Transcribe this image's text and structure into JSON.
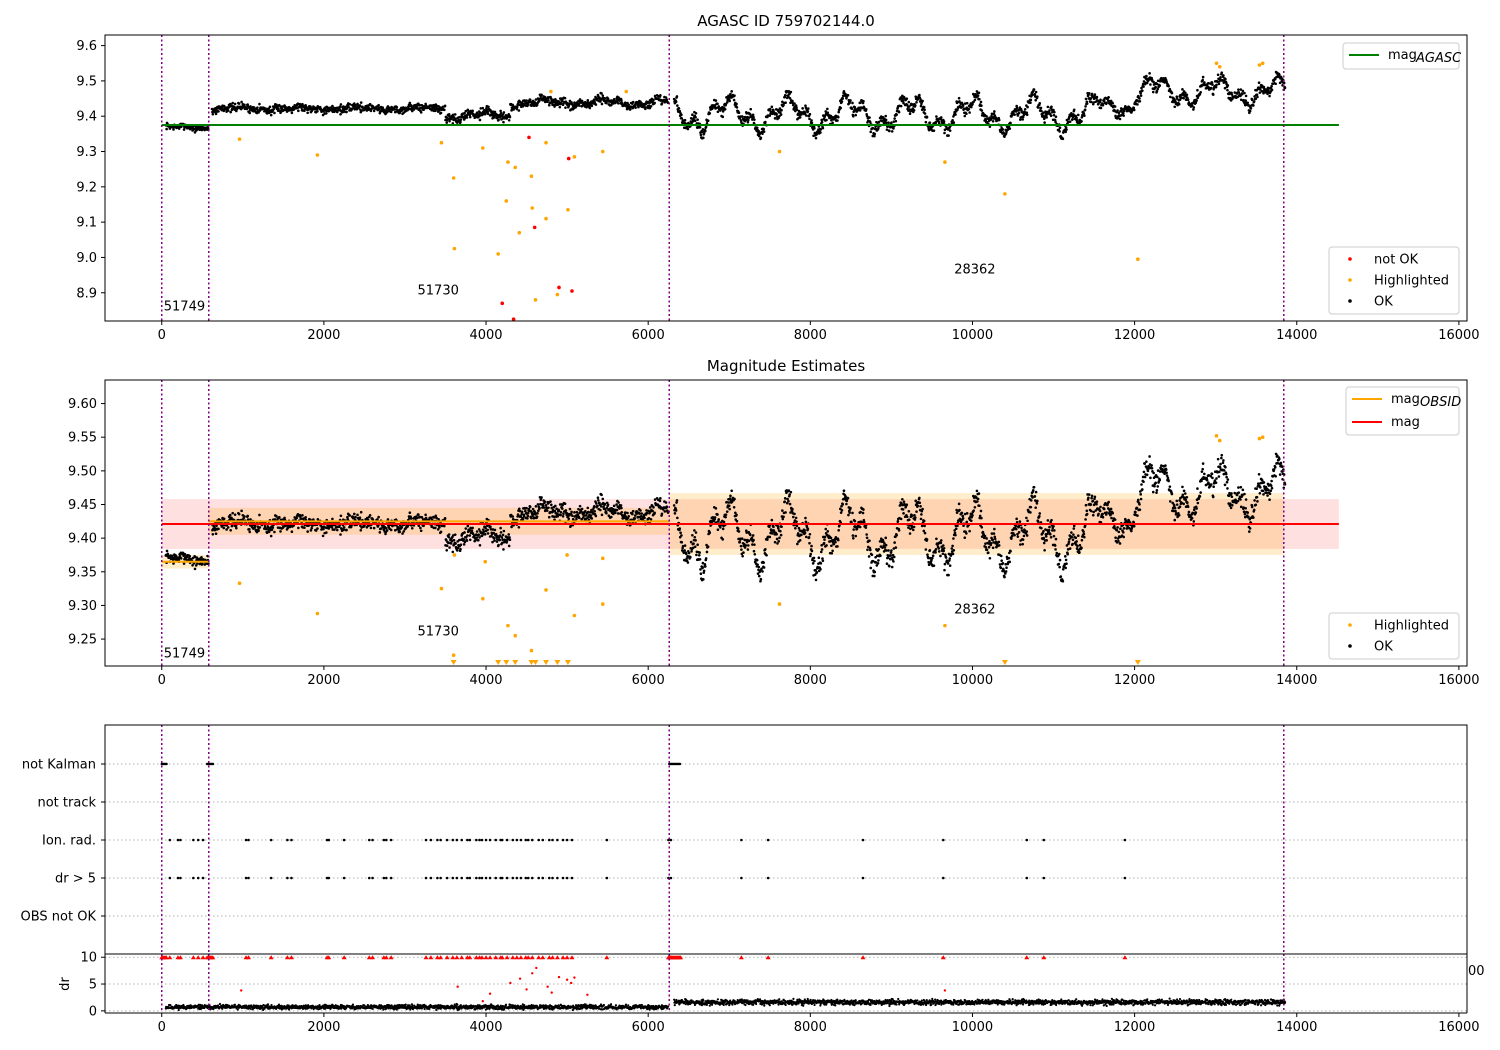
{
  "chart_data": [
    {
      "type": "scatter",
      "title": "AGASC ID 759702144.0",
      "xlim": [
        -700,
        16100
      ],
      "ylim": [
        8.82,
        9.63
      ],
      "xticks": [
        0,
        2000,
        4000,
        6000,
        8000,
        10000,
        12000,
        14000,
        16000
      ],
      "yticks": [
        8.9,
        9.0,
        9.1,
        9.2,
        9.3,
        9.4,
        9.5,
        9.6
      ],
      "ytick_labels": [
        "8.9",
        "9.0",
        "9.1",
        "9.2",
        "9.3",
        "9.4",
        "9.5",
        "9.6"
      ],
      "vlines": [
        0,
        580,
        6260,
        13840
      ],
      "hline": {
        "label": "mag_AGASC",
        "y": 9.375,
        "x": [
          0,
          14520
        ],
        "color": "#008000"
      },
      "annotations": [
        {
          "text": "51749",
          "x": 0,
          "y": 8.85
        },
        {
          "text": "51730",
          "x": 3130,
          "y": 8.895
        },
        {
          "text": "28362",
          "x": 9750,
          "y": 8.955
        }
      ],
      "legend_top": [
        {
          "label": "mag",
          "sub": "AGASC",
          "color": "#008000"
        }
      ],
      "legend_bottom": [
        {
          "label": "not OK",
          "color": "#ff0000"
        },
        {
          "label": "Highlighted",
          "color": "#ffa500"
        },
        {
          "label": "OK",
          "color": "#000000"
        }
      ],
      "segments": [
        {
          "x": [
            50,
            580
          ],
          "base": 9.368,
          "amp": 0.004,
          "noise": 0.013
        },
        {
          "x": [
            620,
            3500
          ],
          "base": 9.422,
          "amp": 0.004,
          "noise": 0.018
        },
        {
          "x": [
            3500,
            4300
          ],
          "base": 9.402,
          "amp": 0.01,
          "noise": 0.02
        },
        {
          "x": [
            4300,
            6250
          ],
          "base": 9.438,
          "amp": 0.008,
          "noise": 0.02
        },
        {
          "x": [
            6320,
            11500
          ],
          "base": 9.405,
          "amp": 0.035,
          "noise": 0.025
        },
        {
          "x": [
            11500,
            12000
          ],
          "base": 9.432,
          "amp": 0.02,
          "noise": 0.02
        },
        {
          "x": [
            12000,
            13860
          ],
          "base": 9.47,
          "amp": 0.028,
          "noise": 0.025
        }
      ],
      "highlighted_points": [
        {
          "x": 960,
          "y": 9.335
        },
        {
          "x": 1920,
          "y": 9.29
        },
        {
          "x": 3450,
          "y": 9.325
        },
        {
          "x": 3600,
          "y": 9.225
        },
        {
          "x": 3610,
          "y": 9.025
        },
        {
          "x": 3960,
          "y": 9.31
        },
        {
          "x": 4150,
          "y": 9.01
        },
        {
          "x": 4250,
          "y": 9.16
        },
        {
          "x": 4270,
          "y": 9.27
        },
        {
          "x": 4360,
          "y": 9.255
        },
        {
          "x": 4410,
          "y": 9.07
        },
        {
          "x": 4560,
          "y": 9.23
        },
        {
          "x": 4570,
          "y": 9.14
        },
        {
          "x": 4610,
          "y": 8.88
        },
        {
          "x": 4740,
          "y": 9.325
        },
        {
          "x": 4740,
          "y": 9.11
        },
        {
          "x": 4880,
          "y": 8.895
        },
        {
          "x": 5010,
          "y": 9.135
        },
        {
          "x": 5090,
          "y": 9.285
        },
        {
          "x": 5440,
          "y": 9.3
        },
        {
          "x": 7620,
          "y": 9.3
        },
        {
          "x": 9660,
          "y": 9.27
        },
        {
          "x": 10400,
          "y": 9.18
        },
        {
          "x": 12040,
          "y": 8.995
        },
        {
          "x": 13010,
          "y": 9.55
        },
        {
          "x": 13050,
          "y": 9.54
        },
        {
          "x": 13540,
          "y": 9.545
        },
        {
          "x": 13580,
          "y": 9.55
        },
        {
          "x": 5730,
          "y": 9.47
        },
        {
          "x": 4800,
          "y": 9.47
        }
      ],
      "not_ok_points": [
        {
          "x": 4200,
          "y": 8.87
        },
        {
          "x": 4340,
          "y": 8.825
        },
        {
          "x": 4530,
          "y": 9.34
        },
        {
          "x": 4600,
          "y": 9.085
        },
        {
          "x": 4900,
          "y": 8.915
        },
        {
          "x": 5020,
          "y": 9.28
        },
        {
          "x": 5060,
          "y": 8.905
        }
      ],
      "x_extra": {
        "note": "scatter series OK generated from segments"
      }
    },
    {
      "type": "scatter",
      "title": "Magnitude Estimates",
      "xlim": [
        -700,
        16100
      ],
      "ylim": [
        9.21,
        9.635
      ],
      "xticks": [
        0,
        2000,
        4000,
        6000,
        8000,
        10000,
        12000,
        14000,
        16000
      ],
      "yticks": [
        9.25,
        9.3,
        9.35,
        9.4,
        9.45,
        9.5,
        9.55,
        9.6
      ],
      "ytick_labels": [
        "9.25",
        "9.30",
        "9.35",
        "9.40",
        "9.45",
        "9.50",
        "9.55",
        "9.60"
      ],
      "vlines": [
        0,
        580,
        6260,
        13840
      ],
      "mag_line": {
        "label": "mag",
        "y": 9.421,
        "x": [
          0,
          14520
        ],
        "band": [
          9.384,
          9.458
        ],
        "color": "#ff0000"
      },
      "obsid_mags": [
        {
          "x": [
            0,
            580
          ],
          "y": 9.365,
          "band": [
            9.355,
            9.375
          ]
        },
        {
          "x": [
            580,
            6260
          ],
          "y": 9.425,
          "band": [
            9.405,
            9.445
          ]
        },
        {
          "x": [
            6260,
            13840
          ],
          "y": 9.421,
          "band": [
            9.375,
            9.467
          ]
        }
      ],
      "annotations": [
        {
          "text": "51749",
          "x": 0,
          "y": 9.223
        },
        {
          "text": "51730",
          "x": 3130,
          "y": 9.255
        },
        {
          "text": "28362",
          "x": 9750,
          "y": 9.288
        }
      ],
      "legend_top": [
        {
          "label": "mag",
          "sub": "OBSID",
          "color": "#ffa500"
        },
        {
          "label": "mag",
          "sub": "",
          "color": "#ff0000"
        }
      ],
      "legend_bottom": [
        {
          "label": "Highlighted",
          "color": "#ffa500"
        },
        {
          "label": "OK",
          "color": "#000000"
        }
      ],
      "triangles_x": [
        3600,
        4150,
        4250,
        4360,
        4560,
        4610,
        4740,
        4880,
        5010,
        10400,
        12040
      ],
      "highlighted_points": [
        {
          "x": 960,
          "y": 9.333
        },
        {
          "x": 1920,
          "y": 9.288
        },
        {
          "x": 3450,
          "y": 9.325
        },
        {
          "x": 3600,
          "y": 9.226
        },
        {
          "x": 3960,
          "y": 9.31
        },
        {
          "x": 4270,
          "y": 9.27
        },
        {
          "x": 4360,
          "y": 9.255
        },
        {
          "x": 4560,
          "y": 9.233
        },
        {
          "x": 4740,
          "y": 9.323
        },
        {
          "x": 5090,
          "y": 9.285
        },
        {
          "x": 5440,
          "y": 9.302
        },
        {
          "x": 7620,
          "y": 9.302
        },
        {
          "x": 9660,
          "y": 9.27
        },
        {
          "x": 13010,
          "y": 9.552
        },
        {
          "x": 13050,
          "y": 9.545
        },
        {
          "x": 13540,
          "y": 9.548
        },
        {
          "x": 13580,
          "y": 9.55
        },
        {
          "x": 3610,
          "y": 9.375
        },
        {
          "x": 3990,
          "y": 9.365
        },
        {
          "x": 5000,
          "y": 9.375
        },
        {
          "x": 5440,
          "y": 9.37
        }
      ]
    },
    {
      "type": "scatter",
      "title": "",
      "xlim": [
        -700,
        16100
      ],
      "flag_rows": [
        "not Kalman",
        "not track",
        "Ion. rad.",
        "dr > 5",
        "OBS not OK"
      ],
      "flag_hits": {
        "not Kalman": [
          [
            0,
            60
          ],
          [
            560,
            640
          ],
          [
            6260,
            6400
          ]
        ],
        "not track": [],
        "Ion. rad.": [
          100,
          200,
          230,
          390,
          450,
          510,
          1040,
          1070,
          1350,
          1550,
          1600,
          2040,
          2060,
          2250,
          2560,
          2600,
          2740,
          2770,
          2830,
          3260,
          3320,
          3400,
          3440,
          3520,
          3590,
          3640,
          3700,
          3770,
          3800,
          3880,
          3920,
          3950,
          4000,
          4050,
          4120,
          4180,
          4200,
          4260,
          4330,
          4380,
          4430,
          4490,
          4520,
          4570,
          4650,
          4700,
          4780,
          4820,
          4880,
          4950,
          5000,
          5060,
          5490,
          6250,
          6280,
          7150,
          7480,
          8650,
          9640,
          10670,
          10880,
          11880
        ],
        "dr > 5": [
          100,
          200,
          230,
          390,
          450,
          510,
          1040,
          1070,
          1350,
          1550,
          1600,
          2040,
          2060,
          2250,
          2560,
          2600,
          2740,
          2770,
          2830,
          3260,
          3320,
          3400,
          3440,
          3520,
          3590,
          3640,
          3700,
          3770,
          3800,
          3880,
          3920,
          3950,
          4000,
          4050,
          4120,
          4180,
          4200,
          4260,
          4330,
          4380,
          4430,
          4490,
          4520,
          4570,
          4650,
          4700,
          4780,
          4820,
          4880,
          4950,
          5000,
          5060,
          5490,
          6250,
          6280,
          7150,
          7480,
          8650,
          9640,
          10670,
          10880,
          11880
        ],
        "OBS not OK": []
      },
      "dr_panel": {
        "ylabel": "dr",
        "ylim": [
          -0.4,
          10.6
        ],
        "yticks": [
          0,
          5,
          10
        ],
        "xticks": [
          0,
          2000,
          4000,
          6000,
          8000,
          10000,
          12000,
          14000,
          16000
        ],
        "right_overflow_label": "00",
        "red_points": [
          {
            "x": 980,
            "y": 3.8
          },
          {
            "x": 3650,
            "y": 4.5
          },
          {
            "x": 4050,
            "y": 3.2
          },
          {
            "x": 4300,
            "y": 5.2
          },
          {
            "x": 4420,
            "y": 6.0
          },
          {
            "x": 4500,
            "y": 4.0
          },
          {
            "x": 4570,
            "y": 7.0
          },
          {
            "x": 4620,
            "y": 8.0
          },
          {
            "x": 4760,
            "y": 4.5
          },
          {
            "x": 4810,
            "y": 3.4
          },
          {
            "x": 4900,
            "y": 6.3
          },
          {
            "x": 5000,
            "y": 5.8
          },
          {
            "x": 5050,
            "y": 5.2
          },
          {
            "x": 5090,
            "y": 6.2
          },
          {
            "x": 5250,
            "y": 3.0
          },
          {
            "x": 9660,
            "y": 3.8
          },
          {
            "x": 3960,
            "y": 1.8
          }
        ]
      }
    }
  ]
}
